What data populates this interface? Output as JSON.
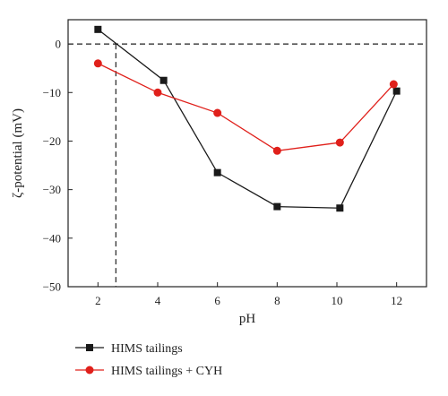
{
  "chart_data": {
    "type": "line",
    "xlabel": "pH",
    "ylabel": "ζ-potential (mV)",
    "xlim": [
      1,
      13
    ],
    "ylim": [
      -50,
      5
    ],
    "xticks": [
      2,
      4,
      6,
      8,
      10,
      12
    ],
    "yticks": [
      0,
      -10,
      -20,
      -30,
      -40,
      -50
    ],
    "x_tick_labels": [
      "2",
      "4",
      "6",
      "8",
      "10",
      "12"
    ],
    "y_tick_labels": [
      "0",
      "−10",
      "−20",
      "−30",
      "−40",
      "−50"
    ],
    "grid": false,
    "legend_position": "bottom-left",
    "reference_lines": {
      "horizontal_y": 0,
      "vertical_x": 2.6
    },
    "series": [
      {
        "name": "HIMS tailings",
        "color": "#1a1a1a",
        "marker": "square",
        "x": [
          2.0,
          4.2,
          6.0,
          8.0,
          10.1,
          12.0
        ],
        "y": [
          3.0,
          -7.5,
          -26.5,
          -33.5,
          -33.8,
          -9.7
        ]
      },
      {
        "name": "HIMS tailings + CYH",
        "color": "#e0201b",
        "marker": "circle",
        "x": [
          2.0,
          4.0,
          6.0,
          8.0,
          10.1,
          11.9
        ],
        "y": [
          -4.0,
          -10.0,
          -14.2,
          -22.0,
          -20.3,
          -8.3
        ]
      }
    ]
  }
}
